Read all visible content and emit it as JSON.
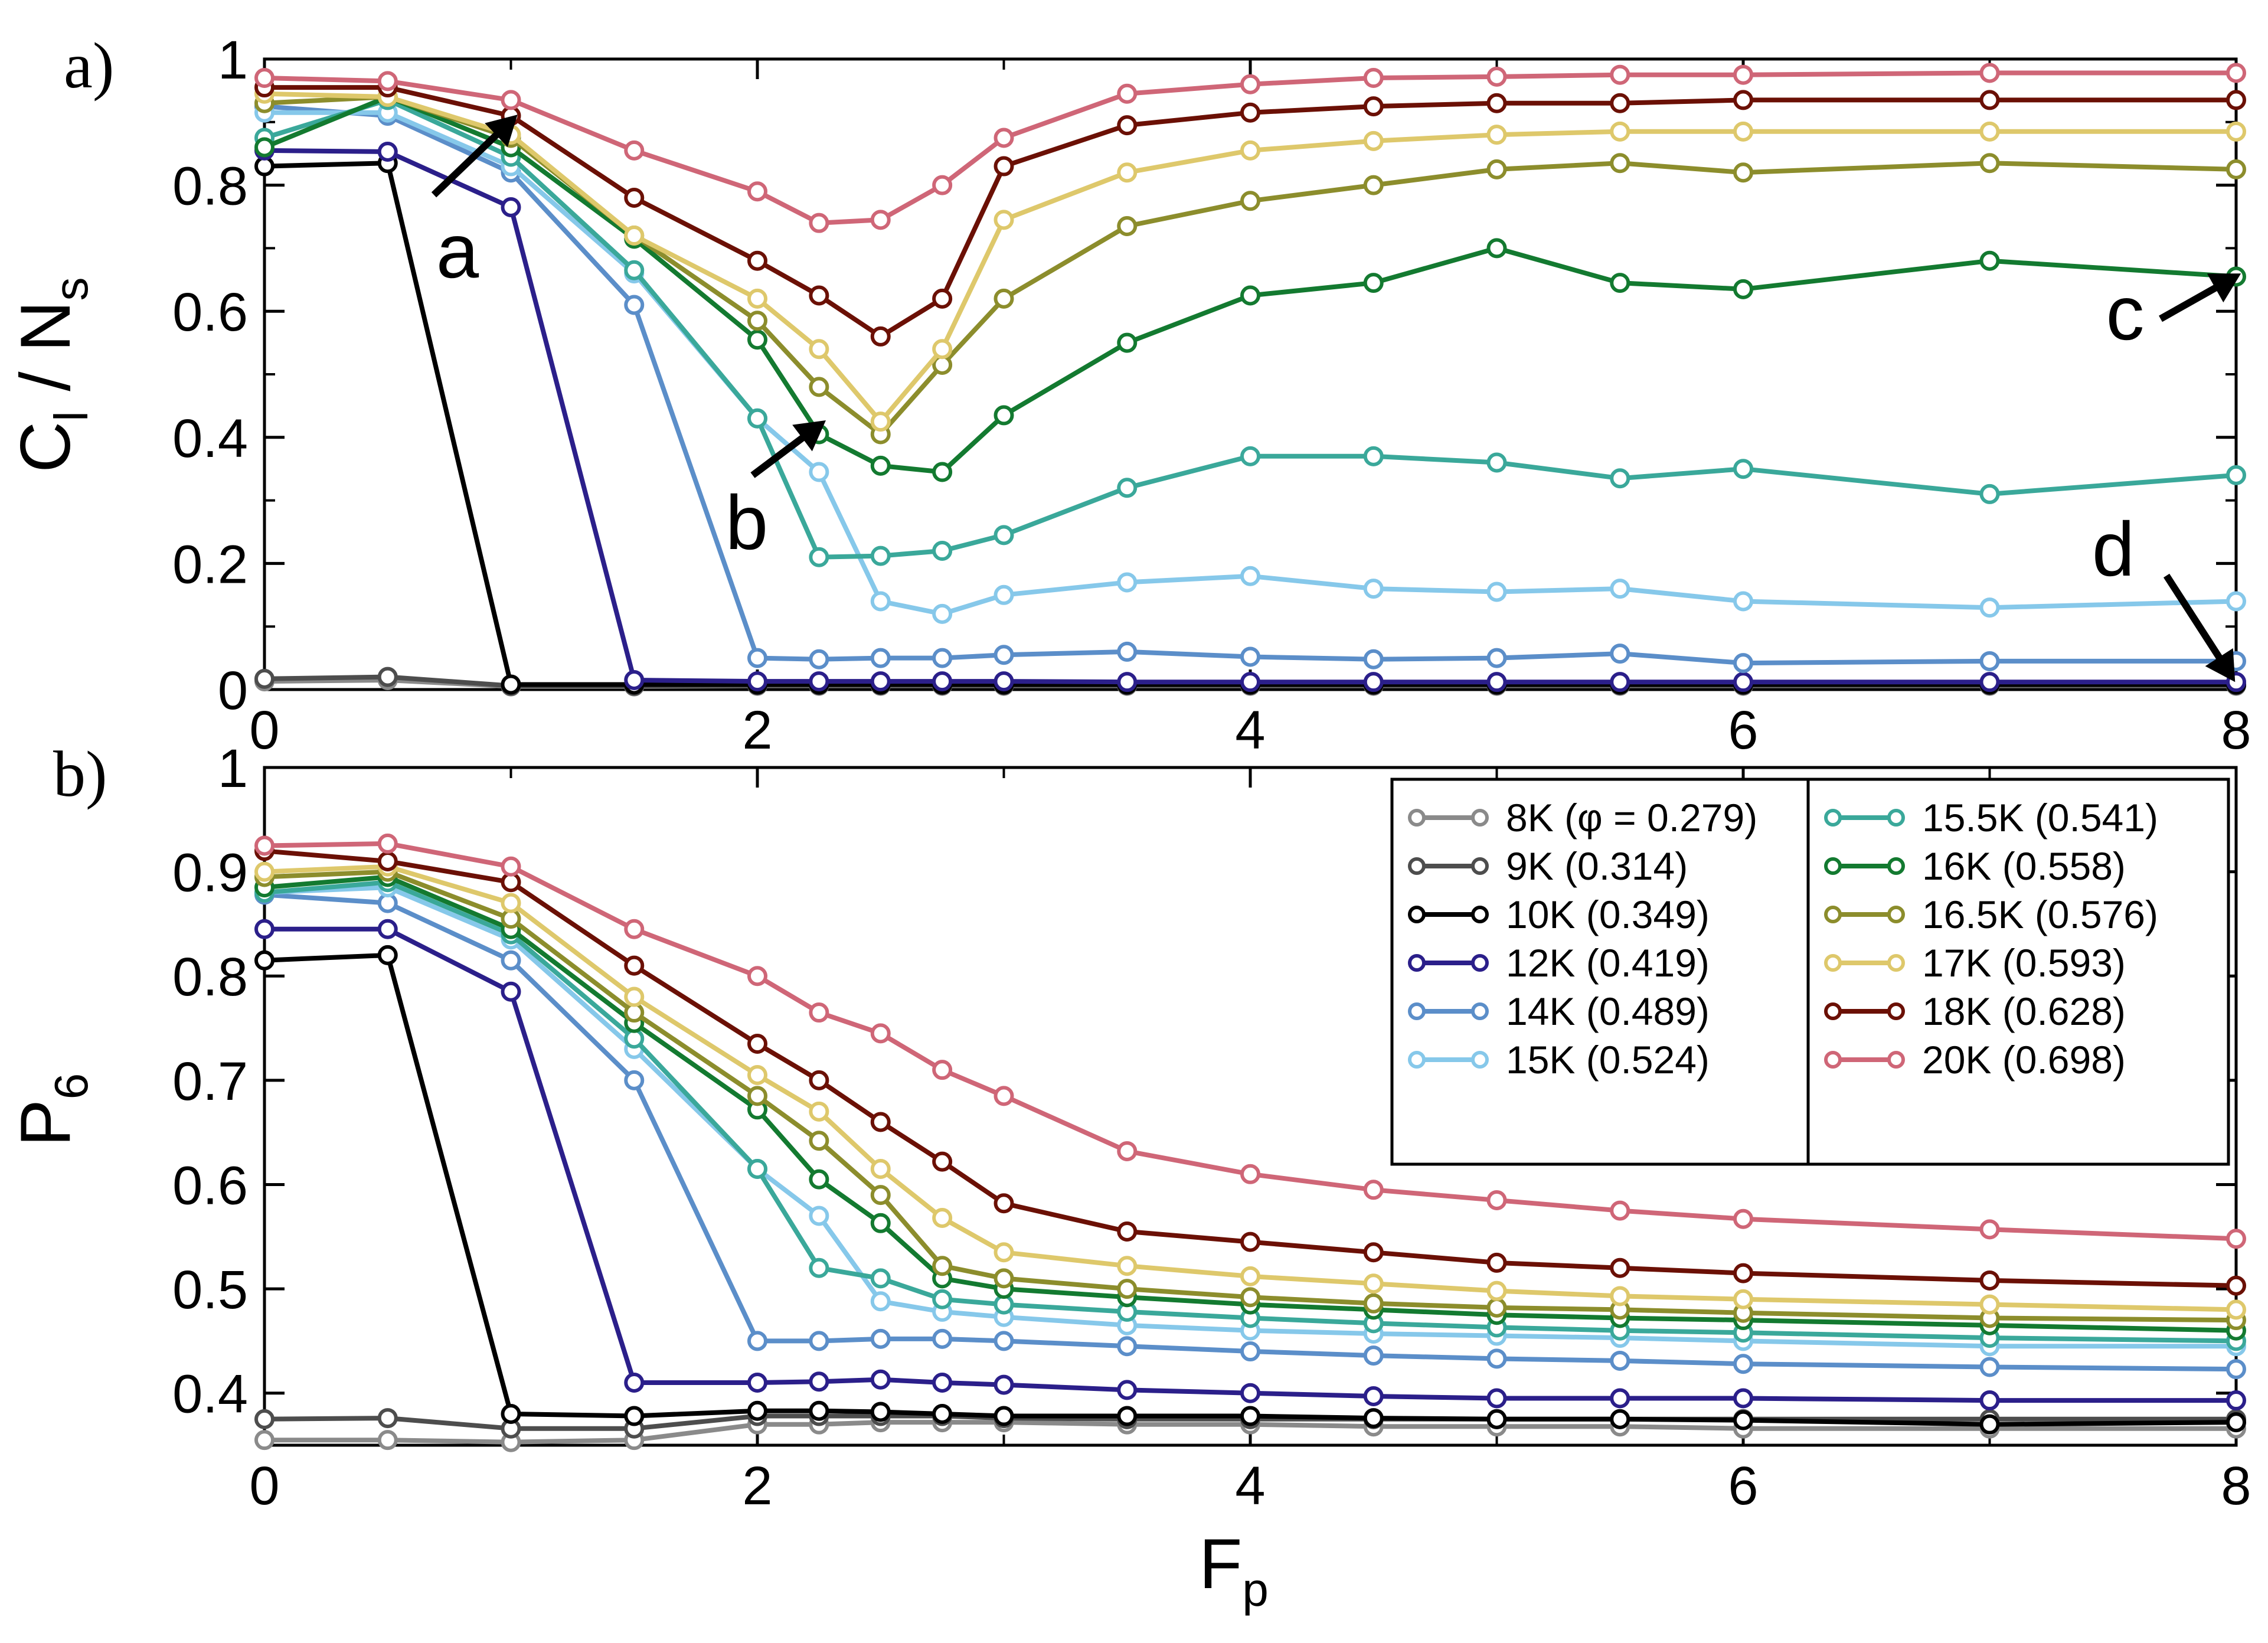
{
  "chart_data": [
    {
      "type": "line",
      "panel_label": "a)",
      "ylabel_main": "C",
      "ylabel_sub1": "l",
      "ylabel_mid": " / N",
      "ylabel_sub2": "s",
      "xlabel": "",
      "xlim": [
        0,
        8
      ],
      "ylim": [
        0,
        1
      ],
      "xticks": [
        0,
        2,
        4,
        6,
        8
      ],
      "yticks": [
        0,
        0.2,
        0.4,
        0.6,
        0.8,
        1
      ],
      "ytick_labels": [
        "0",
        "0.2",
        "0.4",
        "0.6",
        "0.8",
        "1"
      ],
      "annotations": [
        {
          "text": "a",
          "x": 0.85,
          "y": 0.88
        },
        {
          "text": "b",
          "x": 2.15,
          "y": 0.405
        },
        {
          "text": "c",
          "x": 7.95,
          "y": 0.66
        },
        {
          "text": "d",
          "x": 7.95,
          "y": 0.015
        }
      ],
      "series": [
        {
          "name": "8K",
          "x": [
            0,
            0.5,
            1,
            1.5,
            2,
            2.25,
            2.5,
            2.75,
            3,
            3.5,
            4,
            4.5,
            5,
            5.5,
            6,
            7,
            8
          ],
          "y": [
            0.013,
            0.015,
            0.005,
            0.005,
            0.006,
            0.006,
            0.006,
            0.006,
            0.006,
            0.006,
            0.006,
            0.006,
            0.006,
            0.006,
            0.006,
            0.006,
            0.006
          ]
        },
        {
          "name": "9K",
          "x": [
            0,
            0.5,
            1,
            1.5,
            2,
            2.25,
            2.5,
            2.75,
            3,
            3.5,
            4,
            4.5,
            5,
            5.5,
            6,
            7,
            8
          ],
          "y": [
            0.017,
            0.02,
            0.006,
            0.006,
            0.007,
            0.007,
            0.007,
            0.007,
            0.007,
            0.007,
            0.007,
            0.007,
            0.007,
            0.007,
            0.007,
            0.007,
            0.007
          ]
        },
        {
          "name": "10K",
          "x": [
            0,
            0.5,
            1,
            1.5,
            2,
            2.25,
            2.5,
            2.75,
            3,
            3.5,
            4,
            4.5,
            5,
            5.5,
            6,
            7,
            8
          ],
          "y": [
            0.83,
            0.835,
            0.008,
            0.008,
            0.008,
            0.008,
            0.008,
            0.008,
            0.008,
            0.008,
            0.008,
            0.008,
            0.008,
            0.008,
            0.008,
            0.008,
            0.008
          ]
        },
        {
          "name": "12K",
          "x": [
            0,
            0.5,
            1,
            1.5,
            2,
            2.25,
            2.5,
            2.75,
            3,
            3.5,
            4,
            4.5,
            5,
            5.5,
            6,
            7,
            8
          ],
          "y": [
            0.855,
            0.853,
            0.765,
            0.015,
            0.013,
            0.013,
            0.013,
            0.013,
            0.013,
            0.012,
            0.012,
            0.012,
            0.012,
            0.012,
            0.012,
            0.012,
            0.012
          ]
        },
        {
          "name": "14K",
          "x": [
            0,
            0.5,
            1,
            1.5,
            2,
            2.25,
            2.5,
            2.75,
            3,
            3.5,
            4,
            4.5,
            5,
            5.5,
            6,
            7,
            8
          ],
          "y": [
            0.925,
            0.91,
            0.82,
            0.61,
            0.05,
            0.048,
            0.05,
            0.05,
            0.055,
            0.06,
            0.052,
            0.048,
            0.05,
            0.057,
            0.042,
            0.045,
            0.045
          ]
        },
        {
          "name": "15K",
          "x": [
            0,
            0.5,
            1,
            1.5,
            2,
            2.25,
            2.5,
            2.75,
            3,
            3.5,
            4,
            4.5,
            5,
            5.5,
            6,
            7,
            8
          ],
          "y": [
            0.915,
            0.915,
            0.83,
            0.66,
            0.43,
            0.345,
            0.14,
            0.12,
            0.15,
            0.17,
            0.18,
            0.16,
            0.155,
            0.16,
            0.14,
            0.13,
            0.14
          ]
        },
        {
          "name": "15.5K",
          "x": [
            0,
            0.5,
            1,
            1.5,
            2,
            2.25,
            2.5,
            2.75,
            3,
            3.5,
            4,
            4.5,
            5,
            5.5,
            6,
            7,
            8
          ],
          "y": [
            0.875,
            0.935,
            0.845,
            0.665,
            0.43,
            0.21,
            0.212,
            0.22,
            0.245,
            0.32,
            0.37,
            0.37,
            0.36,
            0.335,
            0.35,
            0.31,
            0.34
          ]
        },
        {
          "name": "16K",
          "x": [
            0,
            0.5,
            1,
            1.5,
            2,
            2.25,
            2.5,
            2.75,
            3,
            3.5,
            4,
            4.5,
            5,
            5.5,
            6,
            7,
            8
          ],
          "y": [
            0.86,
            0.94,
            0.86,
            0.715,
            0.555,
            0.405,
            0.355,
            0.345,
            0.435,
            0.55,
            0.625,
            0.645,
            0.7,
            0.645,
            0.635,
            0.68,
            0.655
          ]
        },
        {
          "name": "16.5K",
          "x": [
            0,
            0.5,
            1,
            1.5,
            2,
            2.25,
            2.5,
            2.75,
            3,
            3.5,
            4,
            4.5,
            5,
            5.5,
            6,
            7,
            8
          ],
          "y": [
            0.93,
            0.94,
            0.875,
            0.72,
            0.585,
            0.48,
            0.405,
            0.515,
            0.62,
            0.735,
            0.775,
            0.8,
            0.825,
            0.835,
            0.82,
            0.835,
            0.825
          ]
        },
        {
          "name": "17K",
          "x": [
            0,
            0.5,
            1,
            1.5,
            2,
            2.25,
            2.5,
            2.75,
            3,
            3.5,
            4,
            4.5,
            5,
            5.5,
            6,
            7,
            8
          ],
          "y": [
            0.945,
            0.94,
            0.88,
            0.72,
            0.62,
            0.54,
            0.425,
            0.54,
            0.745,
            0.82,
            0.855,
            0.87,
            0.88,
            0.885,
            0.885,
            0.885,
            0.885
          ]
        },
        {
          "name": "18K",
          "x": [
            0,
            0.5,
            1,
            1.5,
            2,
            2.25,
            2.5,
            2.75,
            3,
            3.5,
            4,
            4.5,
            5,
            5.5,
            6,
            7,
            8
          ],
          "y": [
            0.955,
            0.955,
            0.91,
            0.78,
            0.68,
            0.625,
            0.56,
            0.62,
            0.83,
            0.895,
            0.915,
            0.925,
            0.93,
            0.93,
            0.935,
            0.935,
            0.935
          ]
        },
        {
          "name": "20K",
          "x": [
            0,
            0.5,
            1,
            1.5,
            2,
            2.25,
            2.5,
            2.75,
            3,
            3.5,
            4,
            4.5,
            5,
            5.5,
            6,
            7,
            8
          ],
          "y": [
            0.97,
            0.965,
            0.935,
            0.855,
            0.79,
            0.74,
            0.745,
            0.8,
            0.875,
            0.945,
            0.96,
            0.97,
            0.972,
            0.975,
            0.975,
            0.978,
            0.978
          ]
        }
      ]
    },
    {
      "type": "line",
      "panel_label": "b)",
      "ylabel_main": "P",
      "ylabel_sub": "6",
      "xlabel_main": "F",
      "xlabel_sub": "p",
      "xlim": [
        0,
        8
      ],
      "ylim": [
        0.35,
        1
      ],
      "xticks": [
        0,
        2,
        4,
        6,
        8
      ],
      "yticks": [
        0.4,
        0.5,
        0.6,
        0.7,
        0.8,
        0.9,
        1
      ],
      "ytick_labels": [
        "0.4",
        "0.5",
        "0.6",
        "0.7",
        "0.8",
        "0.9",
        "1"
      ],
      "legend_position": "top-right",
      "series": [
        {
          "name": "8K",
          "x": [
            0,
            0.5,
            1,
            1.5,
            2,
            2.25,
            2.5,
            2.75,
            3,
            3.5,
            4,
            4.5,
            5,
            5.5,
            6,
            7,
            8
          ],
          "y": [
            0.355,
            0.355,
            0.353,
            0.355,
            0.37,
            0.37,
            0.372,
            0.372,
            0.372,
            0.37,
            0.37,
            0.368,
            0.368,
            0.368,
            0.366,
            0.366,
            0.366
          ]
        },
        {
          "name": "9K",
          "x": [
            0,
            0.5,
            1,
            1.5,
            2,
            2.25,
            2.5,
            2.75,
            3,
            3.5,
            4,
            4.5,
            5,
            5.5,
            6,
            7,
            8
          ],
          "y": [
            0.375,
            0.376,
            0.366,
            0.366,
            0.378,
            0.378,
            0.378,
            0.378,
            0.376,
            0.375,
            0.375,
            0.375,
            0.375,
            0.375,
            0.375,
            0.375,
            0.375
          ]
        },
        {
          "name": "10K",
          "x": [
            0,
            0.5,
            1,
            1.5,
            2,
            2.25,
            2.5,
            2.75,
            3,
            3.5,
            4,
            4.5,
            5,
            5.5,
            6,
            7,
            8
          ],
          "y": [
            0.815,
            0.82,
            0.38,
            0.378,
            0.383,
            0.383,
            0.382,
            0.38,
            0.378,
            0.378,
            0.378,
            0.376,
            0.375,
            0.375,
            0.374,
            0.37,
            0.372
          ]
        },
        {
          "name": "12K",
          "x": [
            0,
            0.5,
            1,
            1.5,
            2,
            2.25,
            2.5,
            2.75,
            3,
            3.5,
            4,
            4.5,
            5,
            5.5,
            6,
            7,
            8
          ],
          "y": [
            0.845,
            0.845,
            0.785,
            0.41,
            0.41,
            0.411,
            0.413,
            0.41,
            0.408,
            0.403,
            0.4,
            0.397,
            0.395,
            0.395,
            0.395,
            0.393,
            0.393
          ]
        },
        {
          "name": "14K",
          "x": [
            0,
            0.5,
            1,
            1.5,
            2,
            2.25,
            2.5,
            2.75,
            3,
            3.5,
            4,
            4.5,
            5,
            5.5,
            6,
            7,
            8
          ],
          "y": [
            0.878,
            0.87,
            0.815,
            0.7,
            0.45,
            0.45,
            0.452,
            0.452,
            0.45,
            0.445,
            0.44,
            0.436,
            0.433,
            0.431,
            0.428,
            0.425,
            0.423
          ]
        },
        {
          "name": "15K",
          "x": [
            0,
            0.5,
            1,
            1.5,
            2,
            2.25,
            2.5,
            2.75,
            3,
            3.5,
            4,
            4.5,
            5,
            5.5,
            6,
            7,
            8
          ],
          "y": [
            0.88,
            0.885,
            0.835,
            0.73,
            0.615,
            0.57,
            0.488,
            0.478,
            0.473,
            0.465,
            0.46,
            0.457,
            0.455,
            0.453,
            0.45,
            0.445,
            0.445
          ]
        },
        {
          "name": "15.5K",
          "x": [
            0,
            0.5,
            1,
            1.5,
            2,
            2.25,
            2.5,
            2.75,
            3,
            3.5,
            4,
            4.5,
            5,
            5.5,
            6,
            7,
            8
          ],
          "y": [
            0.88,
            0.89,
            0.84,
            0.74,
            0.615,
            0.52,
            0.51,
            0.49,
            0.485,
            0.478,
            0.472,
            0.467,
            0.463,
            0.46,
            0.458,
            0.453,
            0.45
          ]
        },
        {
          "name": "16K",
          "x": [
            0,
            0.5,
            1,
            1.5,
            2,
            2.25,
            2.5,
            2.75,
            3,
            3.5,
            4,
            4.5,
            5,
            5.5,
            6,
            7,
            8
          ],
          "y": [
            0.885,
            0.895,
            0.845,
            0.755,
            0.672,
            0.605,
            0.563,
            0.51,
            0.5,
            0.492,
            0.485,
            0.48,
            0.475,
            0.472,
            0.47,
            0.465,
            0.46
          ]
        },
        {
          "name": "16.5K",
          "x": [
            0,
            0.5,
            1,
            1.5,
            2,
            2.25,
            2.5,
            2.75,
            3,
            3.5,
            4,
            4.5,
            5,
            5.5,
            6,
            7,
            8
          ],
          "y": [
            0.895,
            0.9,
            0.855,
            0.765,
            0.685,
            0.642,
            0.59,
            0.522,
            0.51,
            0.5,
            0.492,
            0.486,
            0.482,
            0.48,
            0.477,
            0.472,
            0.47
          ]
        },
        {
          "name": "17K",
          "x": [
            0,
            0.5,
            1,
            1.5,
            2,
            2.25,
            2.5,
            2.75,
            3,
            3.5,
            4,
            4.5,
            5,
            5.5,
            6,
            7,
            8
          ],
          "y": [
            0.9,
            0.905,
            0.87,
            0.78,
            0.705,
            0.67,
            0.615,
            0.568,
            0.535,
            0.522,
            0.512,
            0.505,
            0.498,
            0.493,
            0.49,
            0.485,
            0.48
          ]
        },
        {
          "name": "18K",
          "x": [
            0,
            0.5,
            1,
            1.5,
            2,
            2.25,
            2.5,
            2.75,
            3,
            3.5,
            4,
            4.5,
            5,
            5.5,
            6,
            7,
            8
          ],
          "y": [
            0.92,
            0.91,
            0.89,
            0.81,
            0.735,
            0.7,
            0.66,
            0.622,
            0.582,
            0.555,
            0.545,
            0.535,
            0.525,
            0.52,
            0.515,
            0.508,
            0.503
          ]
        },
        {
          "name": "20K",
          "x": [
            0,
            0.5,
            1,
            1.5,
            2,
            2.25,
            2.5,
            2.75,
            3,
            3.5,
            4,
            4.5,
            5,
            5.5,
            6,
            7,
            8
          ],
          "y": [
            0.925,
            0.927,
            0.905,
            0.845,
            0.8,
            0.765,
            0.745,
            0.71,
            0.685,
            0.632,
            0.61,
            0.595,
            0.585,
            0.575,
            0.567,
            0.557,
            0.548
          ]
        }
      ]
    }
  ],
  "legend": [
    {
      "label": "8K (φ = 0.279)",
      "color": "#8a8a8a"
    },
    {
      "label": "9K (0.314)",
      "color": "#4d4d4d"
    },
    {
      "label": "10K (0.349)",
      "color": "#000000"
    },
    {
      "label": "12K (0.419)",
      "color": "#2b1f8a"
    },
    {
      "label": "14K (0.489)",
      "color": "#5b8ec9"
    },
    {
      "label": "15K (0.524)",
      "color": "#86c8ea"
    },
    {
      "label": "15.5K (0.541)",
      "color": "#3aa89a"
    },
    {
      "label": "16K (0.558)",
      "color": "#137a30"
    },
    {
      "label": "16.5K (0.576)",
      "color": "#8c8d2c"
    },
    {
      "label": "17K (0.593)",
      "color": "#dec86b"
    },
    {
      "label": "18K (0.628)",
      "color": "#6b1005"
    },
    {
      "label": "20K (0.698)",
      "color": "#cf6677"
    }
  ]
}
